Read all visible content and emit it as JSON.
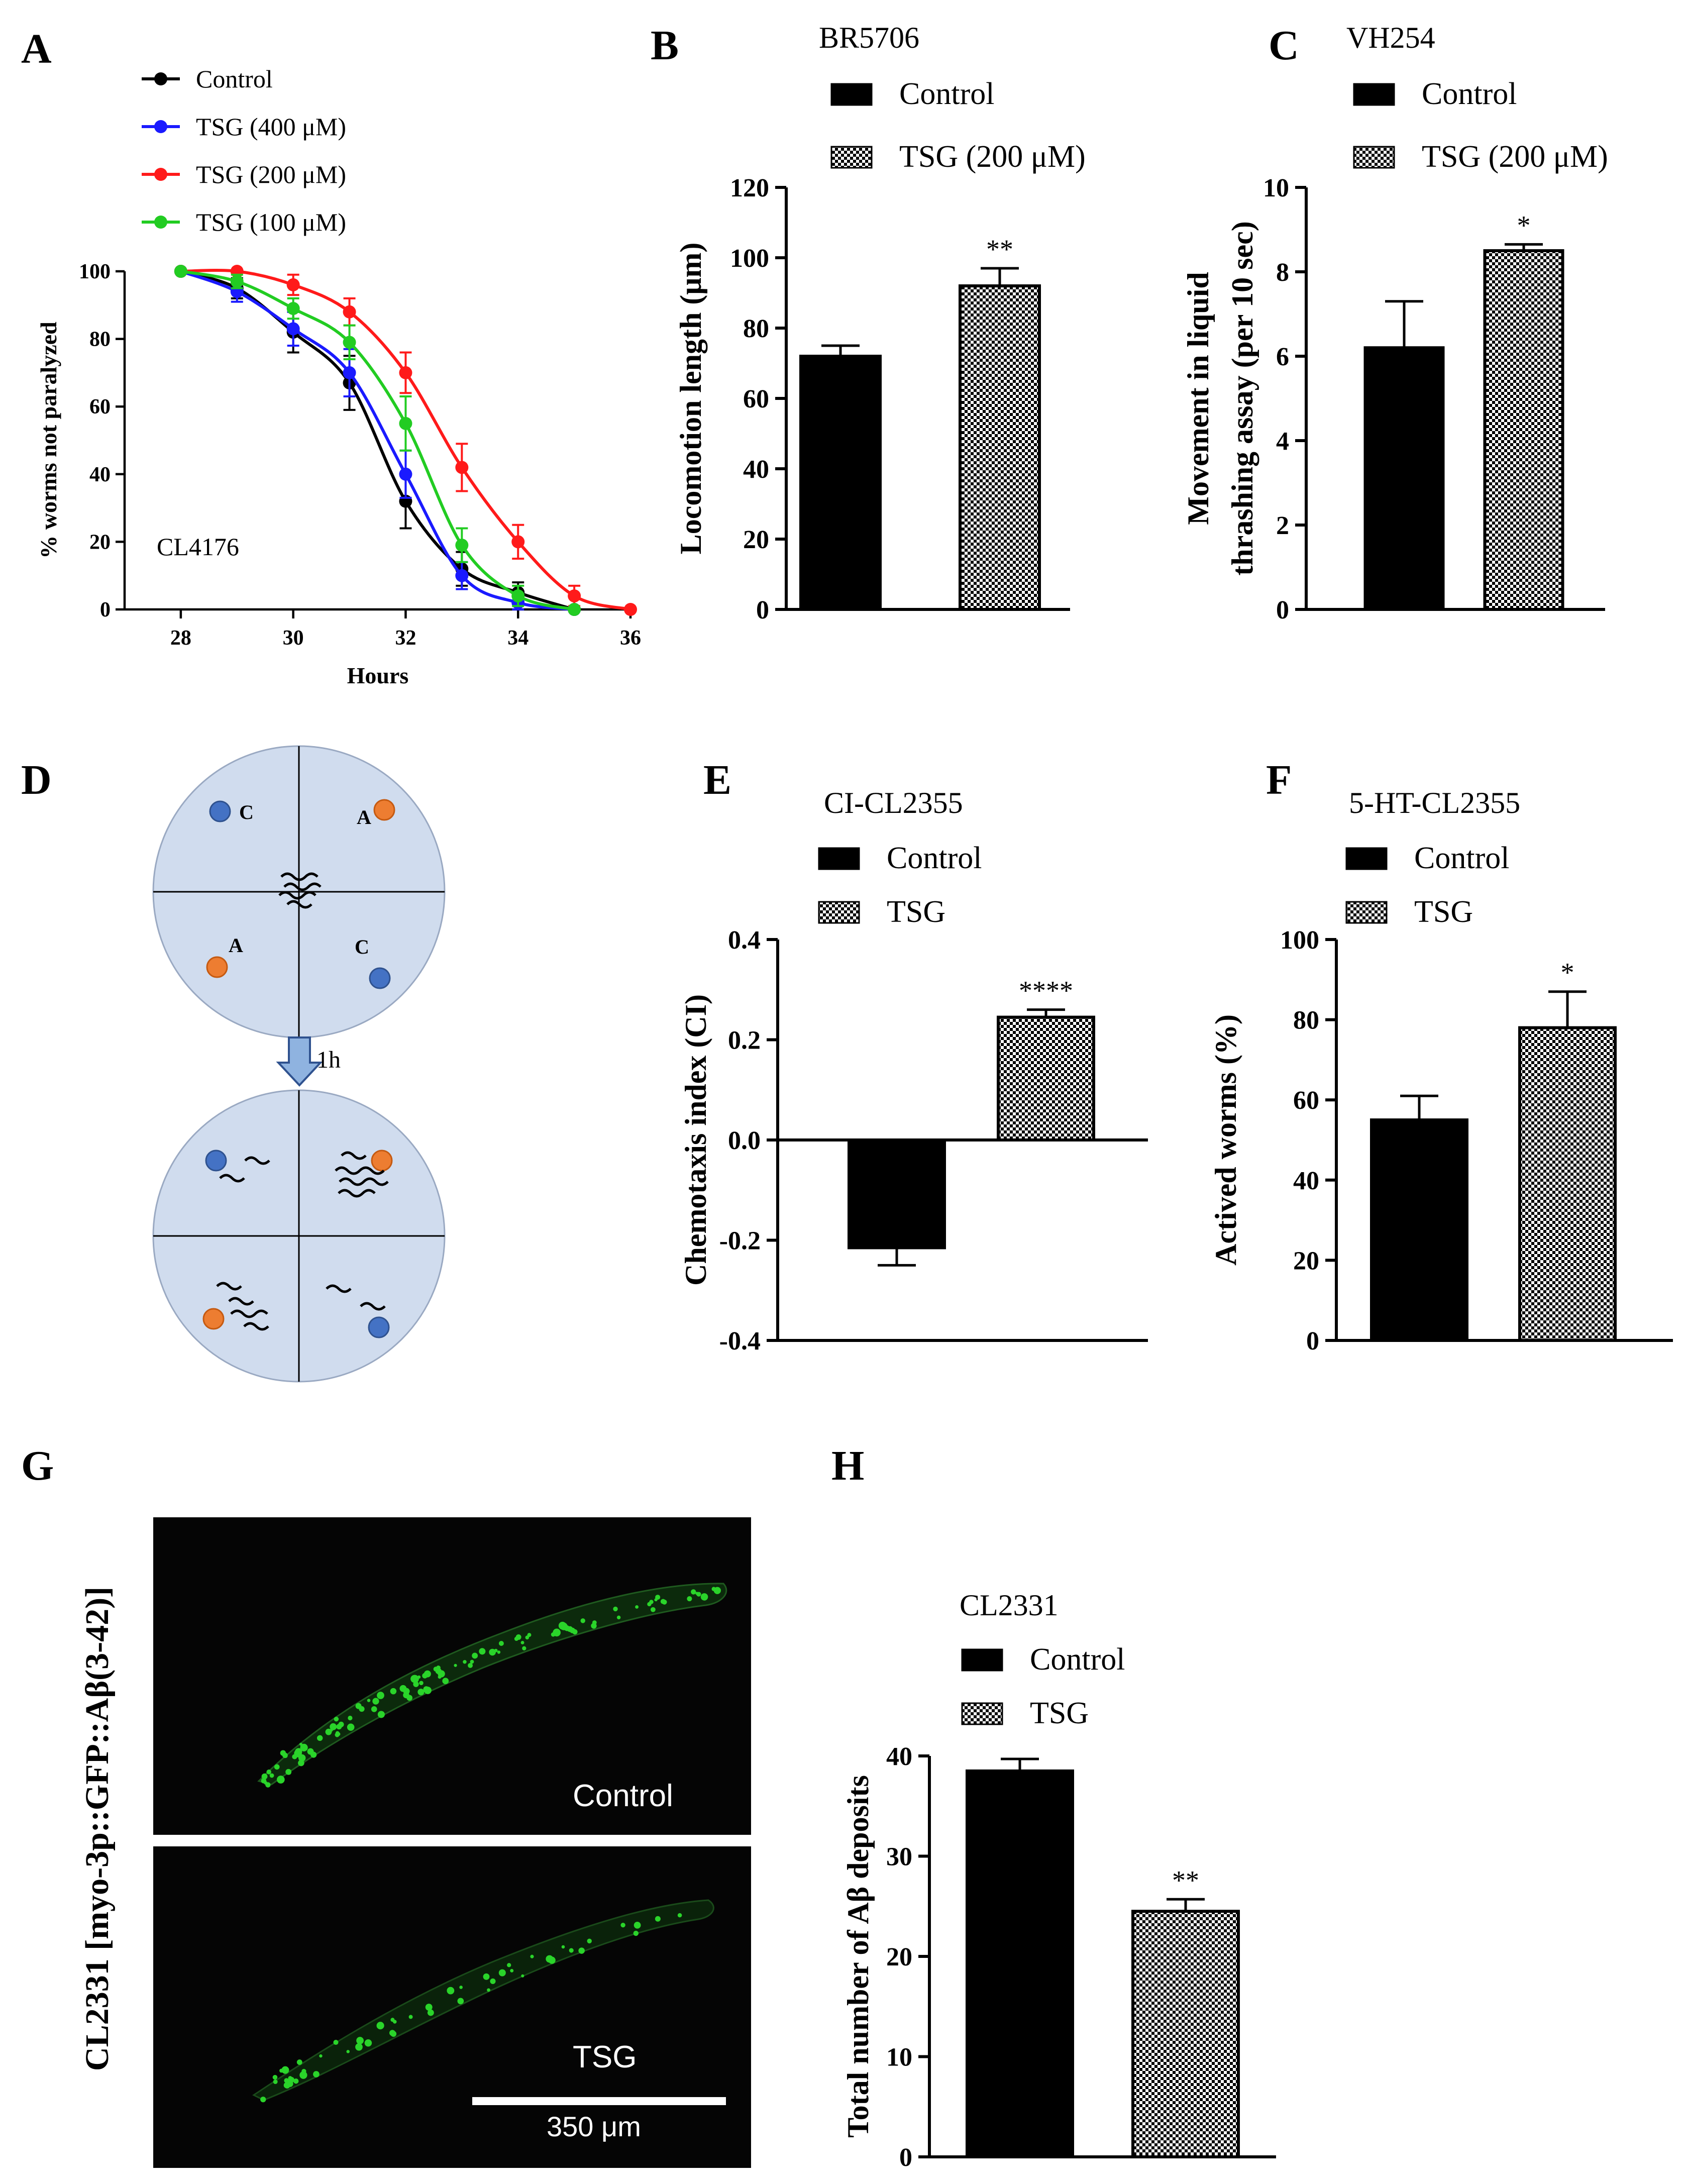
{
  "panels": {
    "A": "A",
    "B": "B",
    "C": "C",
    "D": "D",
    "E": "E",
    "F": "F",
    "G": "G",
    "H": "H"
  },
  "chart_data": [
    {
      "panel": "A",
      "type": "line",
      "strain": "CL4176",
      "xlabel": "Hours",
      "ylabel": "% worms not paralyzed",
      "xlim": [
        27,
        36
      ],
      "ylim": [
        0,
        100
      ],
      "xticks": [
        "28",
        "30",
        "32",
        "34",
        "36"
      ],
      "yticks": [
        "0",
        "20",
        "40",
        "60",
        "80",
        "100"
      ],
      "series": [
        {
          "name": "Control",
          "color": "#000000",
          "x": [
            28,
            29,
            30,
            31,
            32,
            33,
            34,
            35
          ],
          "y": [
            100,
            95,
            82,
            67,
            32,
            12,
            5,
            0
          ],
          "err": [
            0,
            3,
            6,
            8,
            8,
            5,
            3,
            0
          ]
        },
        {
          "name": "TSG (400 μM)",
          "color": "#1a1aff",
          "x": [
            28,
            29,
            30,
            31,
            32,
            33,
            34,
            35
          ],
          "y": [
            100,
            94,
            83,
            70,
            40,
            10,
            2,
            0
          ],
          "err": [
            0,
            3,
            5,
            7,
            7,
            4,
            2,
            0
          ]
        },
        {
          "name": "TSG (200 μM)",
          "color": "#ff1a1a",
          "x": [
            28,
            29,
            30,
            31,
            32,
            33,
            34,
            35,
            36
          ],
          "y": [
            100,
            100,
            96,
            88,
            70,
            42,
            20,
            4,
            0
          ],
          "err": [
            0,
            0,
            3,
            4,
            6,
            7,
            5,
            3,
            0
          ]
        },
        {
          "name": "TSG (100 μM)",
          "color": "#22cc22",
          "x": [
            28,
            29,
            30,
            31,
            32,
            33,
            34,
            35
          ],
          "y": [
            100,
            97,
            89,
            79,
            55,
            19,
            4,
            0
          ],
          "err": [
            0,
            2,
            3,
            5,
            8,
            5,
            3,
            0
          ]
        }
      ]
    },
    {
      "panel": "B",
      "type": "bar",
      "title": "BR5706",
      "ylabel": "Locomotion  length (μm)",
      "ylim": [
        0,
        120
      ],
      "yticks": [
        "0",
        "20",
        "40",
        "60",
        "80",
        "100",
        "120"
      ],
      "categories": [
        "Control",
        "TSG (200 μM)"
      ],
      "values": [
        72,
        92
      ],
      "err": [
        3,
        5
      ],
      "sig": [
        "",
        "**"
      ]
    },
    {
      "panel": "C",
      "type": "bar",
      "title": "VH254",
      "ylabel": "Movement in liquid thrashing assay (per 10 sec)",
      "ylabel_lines": [
        "Movement in liquid",
        "thrashing assay (per 10 sec)"
      ],
      "ylim": [
        0,
        10
      ],
      "yticks": [
        "0",
        "2",
        "4",
        "6",
        "8",
        "10"
      ],
      "categories": [
        "Control",
        "TSG (200 μM)"
      ],
      "values": [
        6.2,
        8.5
      ],
      "err": [
        1.1,
        0.15
      ],
      "sig": [
        "",
        "*"
      ]
    },
    {
      "panel": "E",
      "type": "bar",
      "title": "CI-CL2355",
      "ylabel": "Chemotaxis index (CI)",
      "ylim": [
        -0.4,
        0.4
      ],
      "yticks": [
        "-0.4",
        "-0.2",
        "0.0",
        "0.2",
        "0.4"
      ],
      "categories": [
        "Control",
        "TSG"
      ],
      "values": [
        -0.215,
        0.245
      ],
      "err": [
        0.035,
        0.015
      ],
      "sig": [
        "",
        "****"
      ]
    },
    {
      "panel": "F",
      "type": "bar",
      "title": "5-HT-CL2355",
      "ylabel": "Actived worms (%)",
      "ylim": [
        0,
        100
      ],
      "yticks": [
        "0",
        "20",
        "40",
        "60",
        "80",
        "100"
      ],
      "categories": [
        "Control",
        "TSG"
      ],
      "values": [
        55,
        78
      ],
      "err": [
        6,
        9
      ],
      "sig": [
        "",
        "*"
      ]
    },
    {
      "panel": "H",
      "type": "bar",
      "title": "CL2331",
      "ylabel": "Total number of Aβ  deposits",
      "ylim": [
        0,
        40
      ],
      "yticks": [
        "0",
        "10",
        "20",
        "30",
        "40"
      ],
      "categories": [
        "Control",
        "TSG"
      ],
      "values": [
        38.5,
        24.5
      ],
      "err": [
        1.2,
        1.2
      ],
      "sig": [
        "",
        "**"
      ]
    }
  ],
  "diagram_D": {
    "labels": {
      "c": "C",
      "a": "A"
    },
    "arrow_label": "1h",
    "colors": {
      "control": "#4472c4",
      "attractant": "#ed7d31",
      "plate": "#d0dcee"
    }
  },
  "micrograph_G": {
    "ylabel": "CL2331 [myo-3p::GFP::Aβ(3-42)]",
    "top_label": "Control",
    "bottom_label": "TSG",
    "scale_label": "350 μm",
    "colors": {
      "background": "#050505",
      "gfp": "#2ad42a"
    }
  }
}
